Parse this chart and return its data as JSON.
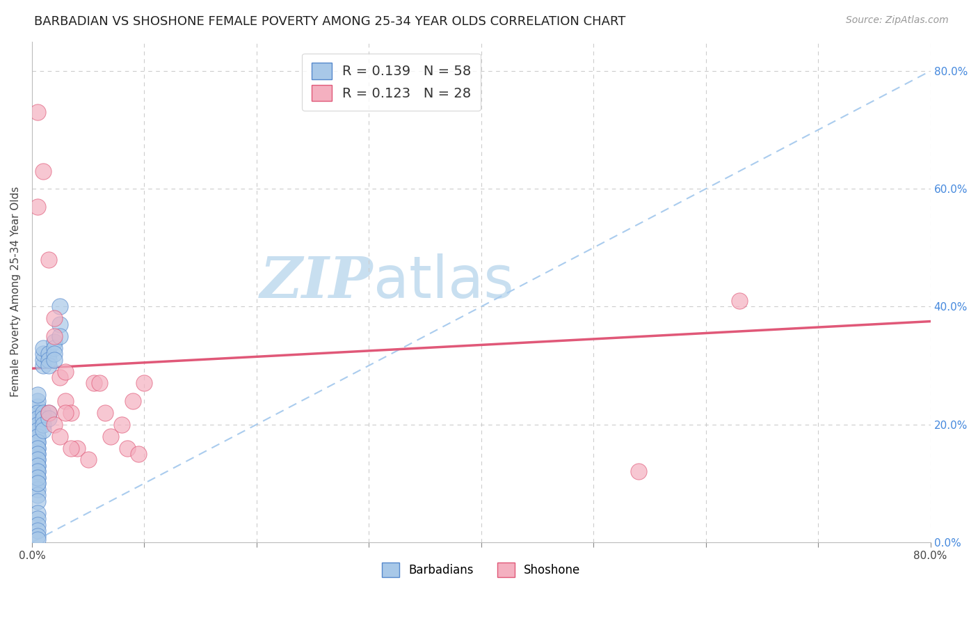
{
  "title": "BARBADIAN VS SHOSHONE FEMALE POVERTY AMONG 25-34 YEAR OLDS CORRELATION CHART",
  "source": "Source: ZipAtlas.com",
  "ylabel": "Female Poverty Among 25-34 Year Olds",
  "xlim": [
    0,
    0.8
  ],
  "ylim": [
    0,
    0.85
  ],
  "blue_R": 0.139,
  "blue_N": 58,
  "pink_R": 0.123,
  "pink_N": 28,
  "barbadians_color": "#a8c8e8",
  "shoshone_color": "#f4b0c0",
  "trend_blue_color": "#5588cc",
  "trend_pink_color": "#e05878",
  "diagonal_color": "#aaccee",
  "grid_color": "#cccccc",
  "title_color": "#222222",
  "watermark_zip_color": "#c8dff0",
  "watermark_atlas_color": "#c8dff0",
  "right_axis_color": "#4488dd",
  "barbadians_x": [
    0.005,
    0.005,
    0.005,
    0.005,
    0.005,
    0.005,
    0.005,
    0.005,
    0.005,
    0.005,
    0.005,
    0.005,
    0.005,
    0.005,
    0.005,
    0.005,
    0.005,
    0.005,
    0.005,
    0.005,
    0.005,
    0.005,
    0.005,
    0.005,
    0.005,
    0.005,
    0.005,
    0.005,
    0.005,
    0.005,
    0.005,
    0.005,
    0.01,
    0.01,
    0.01,
    0.01,
    0.01,
    0.01,
    0.01,
    0.01,
    0.015,
    0.015,
    0.015,
    0.015,
    0.015,
    0.02,
    0.02,
    0.02,
    0.02,
    0.025,
    0.025,
    0.025,
    0.005,
    0.005,
    0.005,
    0.005,
    0.005,
    0.005
  ],
  "barbadians_y": [
    0.22,
    0.21,
    0.2,
    0.19,
    0.18,
    0.17,
    0.16,
    0.15,
    0.14,
    0.13,
    0.12,
    0.11,
    0.1,
    0.09,
    0.08,
    0.07,
    0.23,
    0.24,
    0.25,
    0.22,
    0.21,
    0.2,
    0.19,
    0.18,
    0.17,
    0.16,
    0.15,
    0.14,
    0.13,
    0.12,
    0.11,
    0.1,
    0.3,
    0.31,
    0.32,
    0.33,
    0.22,
    0.21,
    0.2,
    0.19,
    0.32,
    0.31,
    0.3,
    0.22,
    0.21,
    0.34,
    0.33,
    0.32,
    0.31,
    0.4,
    0.37,
    0.35,
    0.05,
    0.04,
    0.03,
    0.02,
    0.01,
    0.005
  ],
  "shoshone_x": [
    0.005,
    0.005,
    0.01,
    0.015,
    0.02,
    0.02,
    0.025,
    0.03,
    0.03,
    0.035,
    0.04,
    0.05,
    0.055,
    0.06,
    0.065,
    0.07,
    0.08,
    0.085,
    0.09,
    0.095,
    0.1,
    0.015,
    0.02,
    0.025,
    0.03,
    0.035,
    0.54,
    0.63
  ],
  "shoshone_y": [
    0.73,
    0.57,
    0.63,
    0.48,
    0.38,
    0.35,
    0.28,
    0.29,
    0.24,
    0.22,
    0.16,
    0.14,
    0.27,
    0.27,
    0.22,
    0.18,
    0.2,
    0.16,
    0.24,
    0.15,
    0.27,
    0.22,
    0.2,
    0.18,
    0.22,
    0.16,
    0.12,
    0.41
  ],
  "pink_trend_x0": 0.0,
  "pink_trend_y0": 0.295,
  "pink_trend_x1": 0.8,
  "pink_trend_y1": 0.375,
  "blue_trend_x0": 0.0,
  "blue_trend_y0": 0.0,
  "blue_trend_x1": 0.8,
  "blue_trend_y1": 0.8
}
